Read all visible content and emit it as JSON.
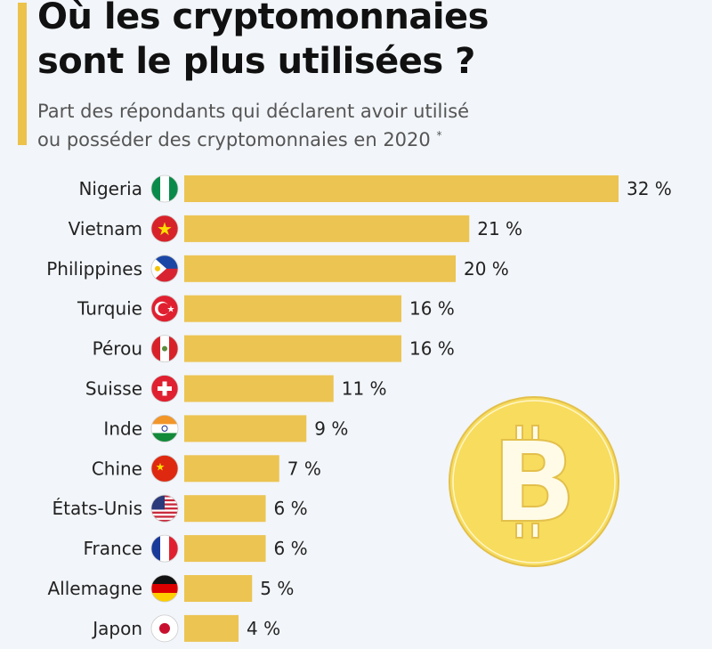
{
  "title_line1": "Où les cryptomonnaies",
  "title_line2": "sont le plus utilisées ?",
  "subtitle_line1": "Part des répondants qui déclarent avoir utilisé",
  "subtitle_line2": "ou posséder des cryptomonnaies en 2020",
  "footnote_mark": "*",
  "colors": {
    "bar": "#ecc452",
    "accent": "#ecc24b",
    "coin": "#f7dc5e",
    "background": "#f2f5f9"
  },
  "decoration": "bitcoin-coin-icon",
  "chart_data": {
    "type": "bar",
    "orientation": "horizontal",
    "title": "Où les cryptomonnaies sont le plus utilisées ?",
    "unit": "%",
    "categories": [
      "Nigeria",
      "Vietnam",
      "Philippines",
      "Turquie",
      "Pérou",
      "Suisse",
      "Inde",
      "Chine",
      "États-Unis",
      "France",
      "Allemagne",
      "Japon"
    ],
    "values": [
      32,
      21,
      20,
      16,
      16,
      11,
      9,
      7,
      6,
      6,
      5,
      4
    ],
    "value_labels": [
      "32 %",
      "21 %",
      "20 %",
      "16 %",
      "16 %",
      "11 %",
      "9 %",
      "7 %",
      "6 %",
      "6 %",
      "5 %",
      "4 %"
    ],
    "flags": [
      "nigeria-flag-icon",
      "vietnam-flag-icon",
      "philippines-flag-icon",
      "turkey-flag-icon",
      "peru-flag-icon",
      "switzerland-flag-icon",
      "india-flag-icon",
      "china-flag-icon",
      "usa-flag-icon",
      "france-flag-icon",
      "germany-flag-icon",
      "japan-flag-icon"
    ],
    "grid": false
  }
}
